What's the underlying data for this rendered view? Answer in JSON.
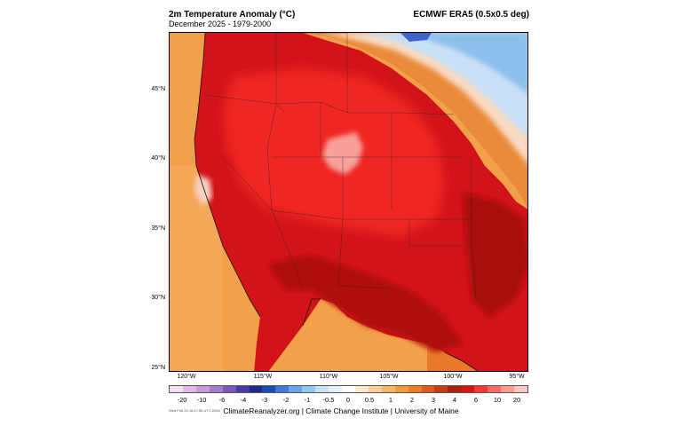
{
  "header": {
    "title": "2m Temperature Anomaly (°C)",
    "subtitle": "December 2025 - 1979-2000",
    "dataset": "ECMWF ERA5 (0.5x0.5 deg)"
  },
  "map": {
    "region": "Western and Central United States",
    "lat_labels": [
      "45°N",
      "40°N",
      "35°N",
      "30°N",
      "25°N"
    ],
    "lon_labels": [
      "120°W",
      "115°W",
      "110°W",
      "105°W",
      "100°W",
      "95°W"
    ],
    "colors": {
      "ocean_orange": "#f2a04a",
      "warm_orange": "#ea7a2a",
      "dark_orange": "#d2561c",
      "red": "#e21c14",
      "bright_red": "#f02a1e",
      "dark_red": "#b41010",
      "pink": "#f8a39a",
      "pale": "#fbe2d4",
      "light_blue": "#c8e0f6",
      "mid_blue": "#8cc0ec",
      "dark_blue": "#3e64c8"
    }
  },
  "legend": {
    "colors": [
      "#f4dff0",
      "#e2b8e4",
      "#c89ad8",
      "#a47ccc",
      "#7a58b8",
      "#4a3aa8",
      "#202a8a",
      "#1c4ab8",
      "#3e78d6",
      "#6aa4ea",
      "#98c6f2",
      "#c6e2f8",
      "#e4f1fb",
      "#ffffff",
      "#fde8d2",
      "#fbcf9e",
      "#f8b468",
      "#f49a3c",
      "#ee7c24",
      "#de5a18",
      "#c43c12",
      "#a82410",
      "#d81410",
      "#f23a30",
      "#f86c64",
      "#fb9c94",
      "#fcc8c2"
    ],
    "labels": [
      "-20",
      "-10",
      "-6",
      "-4",
      "-3",
      "-2",
      "-1",
      "-0.5",
      "0",
      "0.5",
      "1",
      "2",
      "3",
      "4",
      "6",
      "10",
      "20"
    ]
  },
  "footer": {
    "credit": "ClimateReanalyzer.org | Climate Change Institute | University of Maine",
    "timestamp": "Wed Feb 25 16:47:50 UTC 2026"
  }
}
